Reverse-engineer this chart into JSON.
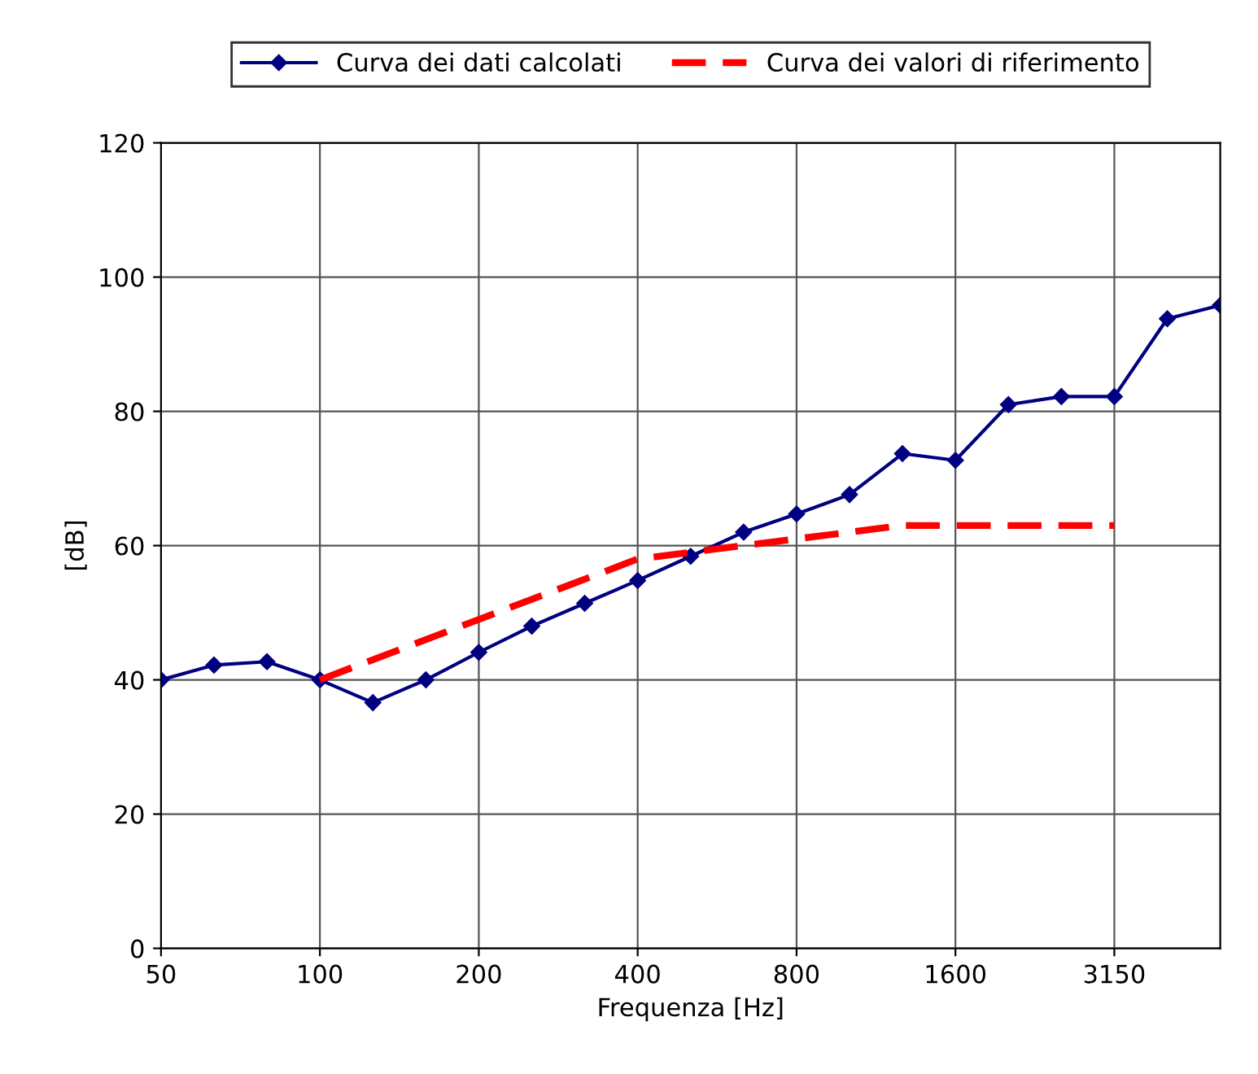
{
  "chart_data": {
    "type": "line",
    "xlabel": "Frequenza [Hz]",
    "ylabel": "[dB]",
    "categories": [
      "50",
      null,
      null,
      "100",
      null,
      null,
      "200",
      null,
      null,
      "400",
      null,
      null,
      "800",
      null,
      null,
      "1600",
      null,
      null,
      "3150",
      null,
      null
    ],
    "series": [
      {
        "name": "Curva dei dati calcolati",
        "color": "#000080",
        "marker": "diamond",
        "line_style": "solid",
        "values": [
          40,
          42.2,
          42.7,
          40,
          36.6,
          40,
          44.1,
          48,
          51.4,
          54.8,
          58.4,
          62,
          64.7,
          67.6,
          73.7,
          72.7,
          81,
          82.2,
          82.2,
          93.8,
          95.8
        ]
      },
      {
        "name": "Curva dei valori di riferimento",
        "color": "#ff0000",
        "marker": "none",
        "line_style": "dashed",
        "values": [
          null,
          null,
          null,
          40,
          43,
          46,
          49,
          52,
          55,
          58,
          59,
          60,
          61,
          62,
          63,
          63,
          63,
          63,
          63,
          null,
          null
        ]
      }
    ],
    "ylim": [
      0,
      120
    ],
    "yticks": [
      0,
      20,
      40,
      60,
      80,
      100,
      120
    ],
    "grid": true,
    "legend": "top"
  }
}
